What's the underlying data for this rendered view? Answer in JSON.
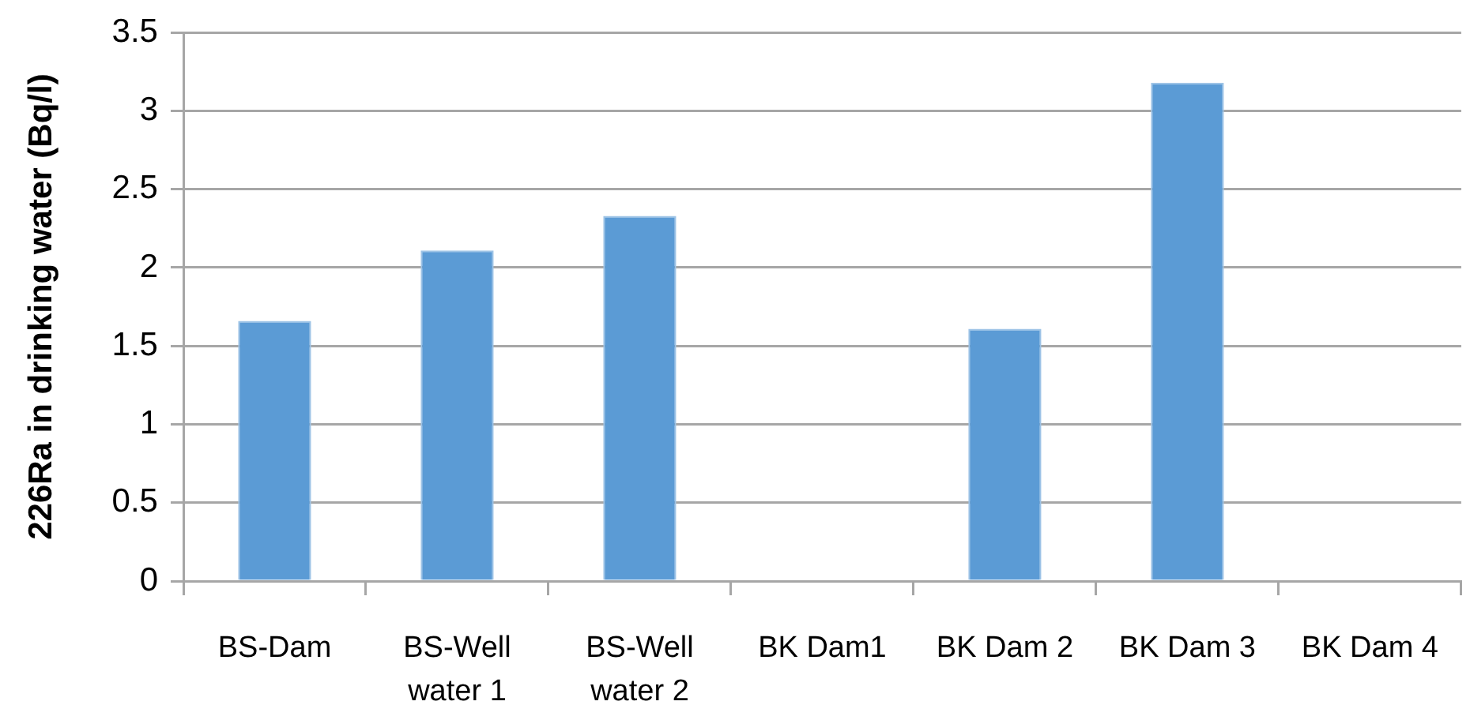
{
  "chart_data": {
    "type": "bar",
    "ylabel": "226Ra in drinking water (Bq/l)",
    "categories": [
      "BS-Dam",
      "BS-Well water 1",
      "BS-Well water 2",
      "BK Dam1",
      "BK Dam 2",
      "BK Dam 3",
      "BK Dam 4"
    ],
    "values": [
      1.66,
      2.11,
      2.33,
      null,
      1.61,
      3.18,
      null
    ],
    "color": "#5b9bd5",
    "ylim": [
      0,
      3.5
    ],
    "yticks": [
      0,
      0.5,
      1,
      1.5,
      2,
      2.5,
      3,
      3.5
    ],
    "grid": "y"
  }
}
